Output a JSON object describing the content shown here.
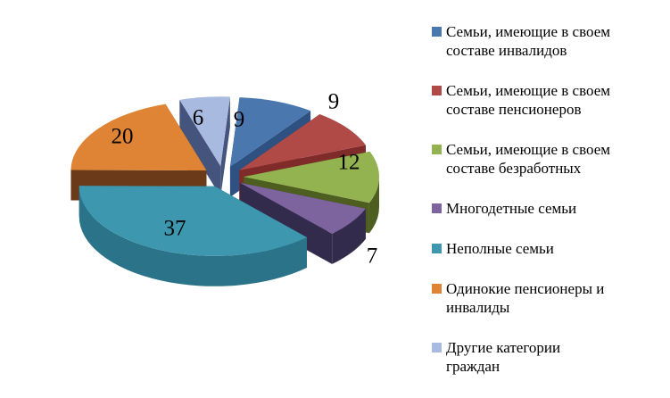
{
  "chart_data": {
    "type": "pie",
    "style": "3d-exploded-pie",
    "title": "",
    "legend_position": "right",
    "direction": "clockwise",
    "start_angle_deg": 4,
    "data_labels": "values",
    "label_color": "#000000",
    "background": "#FFFFFF",
    "values_total": 100,
    "slices": [
      {
        "label": "Семьи, имеющие в своем составе инвалидов",
        "value": 9,
        "data_label": "9",
        "color": "#4B77AF",
        "side_color": "#2E5181",
        "legend_lines": [
          "Семьи, имеющие в своем",
          "составе инвалидов"
        ]
      },
      {
        "label": "Семьи, имеющие в своем составе пенсионеров",
        "value": 9,
        "data_label": "9",
        "color": "#B04A47",
        "side_color": "#7E2B2A",
        "legend_lines": [
          "Семьи, имеющие в своем",
          "составе пенсионеров"
        ]
      },
      {
        "label": "Семьи, имеющие в своем составе безработных",
        "value": 12,
        "data_label": "12",
        "color": "#93B350",
        "side_color": "#4E5E20",
        "legend_lines": [
          "Семьи, имеющие в своем",
          "составе безработных"
        ]
      },
      {
        "label": "Многодетные семьи",
        "value": 7,
        "data_label": "7",
        "color": "#7D649E",
        "side_color": "#332B4B",
        "legend_lines": [
          "Многодетные семьи"
        ]
      },
      {
        "label": "Неполные семьи",
        "value": 37,
        "data_label": "37",
        "color": "#3D97AF",
        "side_color": "#2B7389",
        "legend_lines": [
          "Неполные семьи"
        ]
      },
      {
        "label": "Одинокие пенсионеры и инвалиды",
        "value": 20,
        "data_label": "20",
        "color": "#DE8434",
        "side_color": "#6B3A18",
        "legend_lines": [
          "Одинокие пенсионеры и",
          "инвалиды"
        ]
      },
      {
        "label": "Другие категории граждан",
        "value": 6,
        "data_label": "6",
        "color": "#A8BADF",
        "side_color": "#44547D",
        "legend_lines": [
          "Другие категории",
          "граждан"
        ]
      }
    ]
  }
}
